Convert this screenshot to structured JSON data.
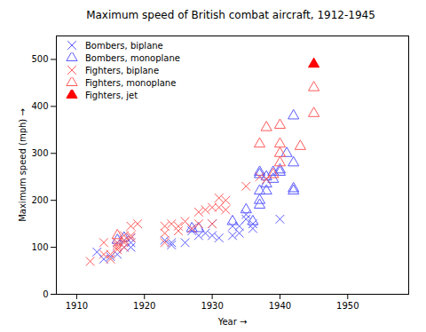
{
  "chart_data": {
    "type": "scatter",
    "title": "Maximum speed of British combat aircraft, 1912-1945",
    "x_label": "Year",
    "y_label": "Maximum speed (mph)",
    "xlim": [
      1907,
      1959
    ],
    "xticks": [
      1910,
      1920,
      1930,
      1940,
      1950
    ],
    "ylim": [
      0,
      550
    ],
    "yticks": [
      0,
      100,
      200,
      300,
      400,
      500
    ],
    "grid": false,
    "legend": "upper left",
    "series": [
      {
        "name": "Bombers, biplane",
        "color": "#5a5aff",
        "marker": "x",
        "x": [
          1913,
          1914,
          1915,
          1916,
          1916,
          1917,
          1917,
          1918,
          1918,
          1918,
          1923,
          1924,
          1924,
          1926,
          1927,
          1927,
          1928,
          1929,
          1930,
          1930,
          1931,
          1933,
          1933,
          1934,
          1934,
          1935,
          1935,
          1936,
          1936,
          1940
        ],
        "values": [
          90,
          75,
          80,
          85,
          110,
          115,
          100,
          110,
          100,
          120,
          115,
          105,
          110,
          110,
          135,
          140,
          125,
          130,
          125,
          150,
          120,
          125,
          145,
          130,
          145,
          160,
          170,
          140,
          150,
          160
        ]
      },
      {
        "name": "Bombers, monoplane",
        "color": "#5a5aff",
        "marker": "triangle-open",
        "x": [
          1916,
          1917,
          1927,
          1928,
          1933,
          1935,
          1936,
          1937,
          1937,
          1937,
          1937,
          1937,
          1938,
          1938,
          1938,
          1939,
          1939,
          1940,
          1940,
          1941,
          1942,
          1942,
          1942,
          1942
        ],
        "values": [
          115,
          120,
          140,
          140,
          155,
          180,
          155,
          190,
          200,
          220,
          255,
          260,
          220,
          235,
          250,
          245,
          260,
          265,
          260,
          300,
          220,
          225,
          280,
          380
        ]
      },
      {
        "name": "Fighters, biplane",
        "color": "#ff5a5a",
        "marker": "x",
        "x": [
          1912,
          1914,
          1914,
          1915,
          1915,
          1916,
          1916,
          1916,
          1916,
          1917,
          1917,
          1917,
          1917,
          1918,
          1918,
          1918,
          1919,
          1923,
          1923,
          1923,
          1924,
          1925,
          1925,
          1926,
          1927,
          1928,
          1928,
          1929,
          1930,
          1930,
          1931,
          1931,
          1932,
          1932,
          1935,
          1937,
          1938
        ],
        "values": [
          70,
          85,
          110,
          75,
          85,
          95,
          100,
          105,
          110,
          100,
          115,
          125,
          110,
          120,
          145,
          125,
          150,
          110,
          130,
          145,
          150,
          145,
          135,
          155,
          140,
          150,
          175,
          180,
          150,
          185,
          205,
          185,
          200,
          180,
          230,
          250,
          245
        ]
      },
      {
        "name": "Fighters, monoplane",
        "color": "#ff5a5a",
        "marker": "triangle-open",
        "x": [
          1916,
          1937,
          1938,
          1939,
          1940,
          1940,
          1940,
          1940,
          1943,
          1945,
          1945
        ],
        "values": [
          125,
          320,
          355,
          255,
          360,
          320,
          300,
          280,
          315,
          440,
          385
        ]
      },
      {
        "name": "Fighters, jet",
        "color": "#ff0000",
        "marker": "triangle",
        "x": [
          1945
        ],
        "values": [
          490
        ]
      }
    ]
  }
}
